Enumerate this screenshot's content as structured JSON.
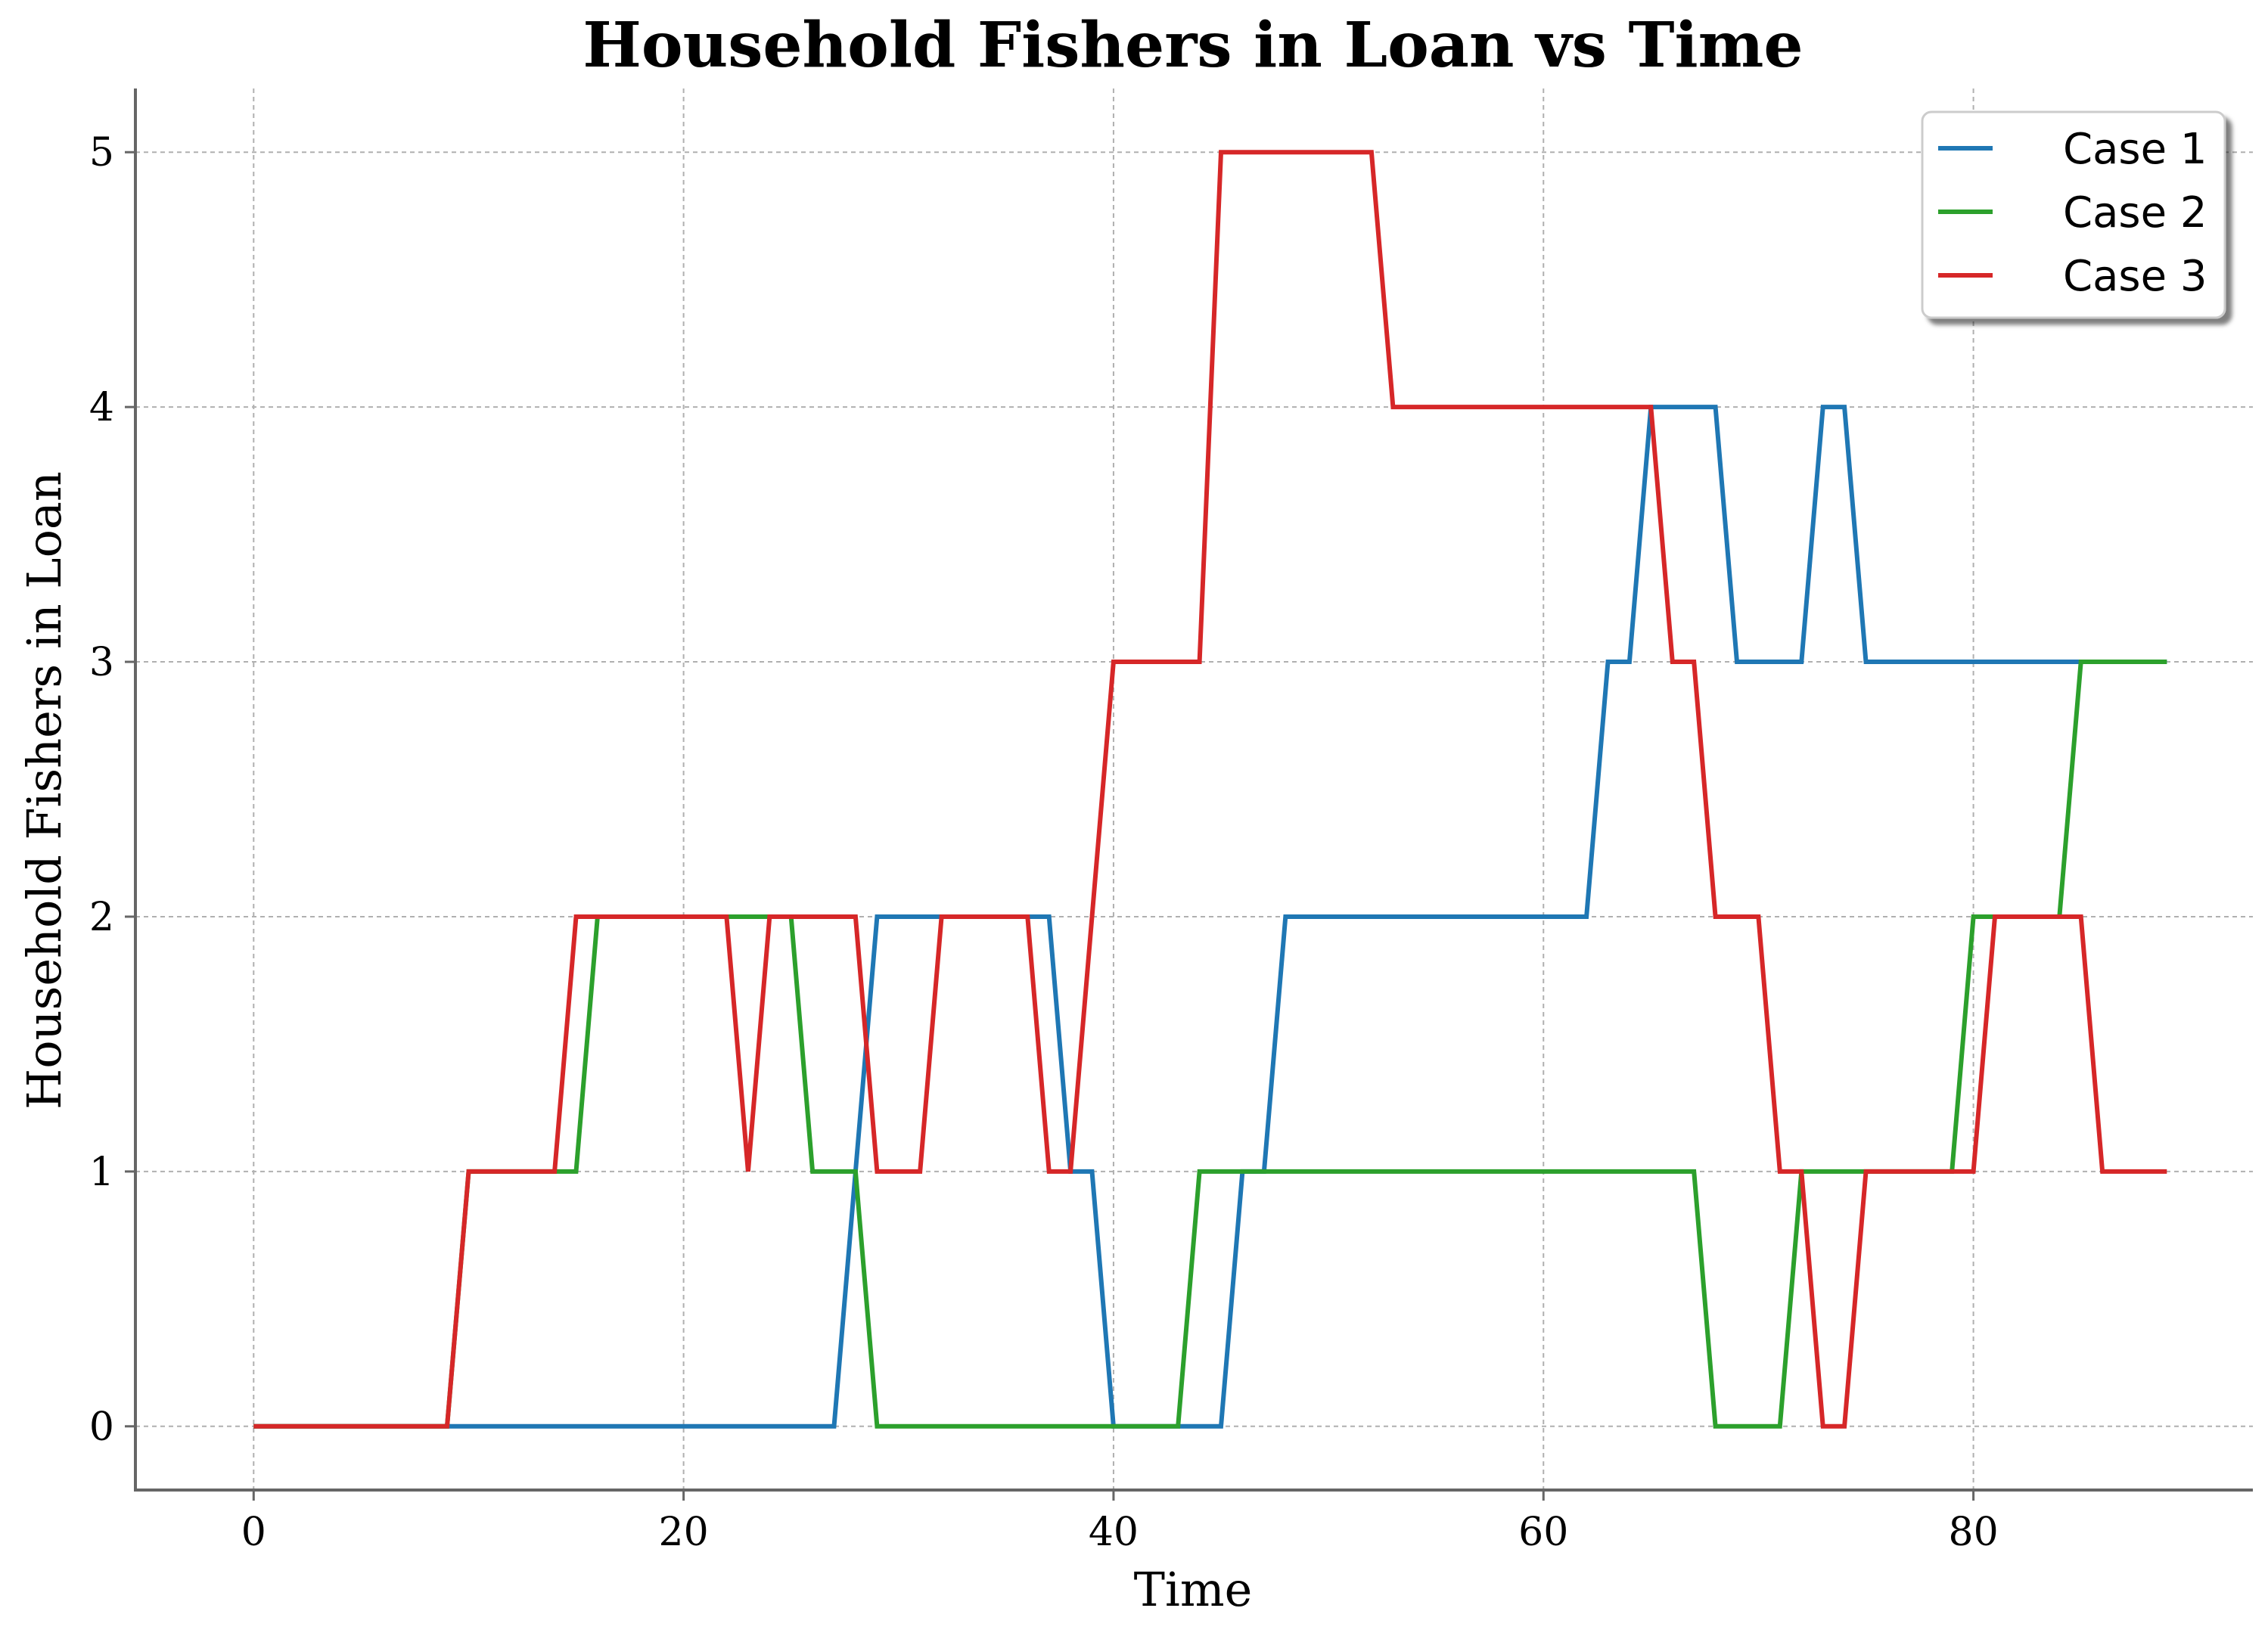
{
  "chart_data": {
    "type": "line",
    "title": "Household Fishers in Loan vs Time",
    "xlabel": "Time",
    "ylabel": "Household Fishers in Loan",
    "xlim": [
      -5.5,
      93
    ],
    "ylim": [
      -0.25,
      5.25
    ],
    "xticks": [
      0,
      20,
      40,
      60,
      80
    ],
    "yticks": [
      0,
      1,
      2,
      3,
      4,
      5
    ],
    "grid": true,
    "legend_position": "top-right",
    "series": [
      {
        "name": "Case 1",
        "color": "#1f77b4",
        "x": [
          0,
          1,
          2,
          3,
          4,
          5,
          6,
          7,
          8,
          9,
          10,
          11,
          12,
          13,
          14,
          15,
          16,
          17,
          18,
          19,
          20,
          21,
          22,
          23,
          24,
          25,
          26,
          27,
          28,
          29,
          30,
          31,
          32,
          33,
          34,
          35,
          36,
          37,
          38,
          39,
          40,
          41,
          42,
          43,
          44,
          45,
          46,
          47,
          48,
          49,
          50,
          51,
          52,
          53,
          54,
          55,
          56,
          57,
          58,
          59,
          60,
          61,
          62,
          63,
          64,
          65,
          66,
          67,
          68,
          69,
          70,
          71,
          72,
          73,
          74,
          75,
          76,
          77,
          78,
          79,
          80,
          81,
          82,
          83,
          84,
          85,
          86,
          87,
          88,
          89
        ],
        "y": [
          0,
          0,
          0,
          0,
          0,
          0,
          0,
          0,
          0,
          0,
          0,
          0,
          0,
          0,
          0,
          0,
          0,
          0,
          0,
          0,
          0,
          0,
          0,
          0,
          0,
          0,
          0,
          0,
          1,
          2,
          2,
          2,
          2,
          2,
          2,
          2,
          2,
          2,
          1,
          1,
          0,
          0,
          0,
          0,
          0,
          0,
          1,
          1,
          2,
          2,
          2,
          2,
          2,
          2,
          2,
          2,
          2,
          2,
          2,
          2,
          2,
          2,
          2,
          3,
          3,
          4,
          4,
          4,
          4,
          3,
          3,
          3,
          3,
          4,
          4,
          3,
          3,
          3,
          3,
          3,
          3,
          3,
          3,
          3,
          3,
          3,
          3,
          3,
          3,
          3
        ]
      },
      {
        "name": "Case 2",
        "color": "#2ca02c",
        "x": [
          0,
          1,
          2,
          3,
          4,
          5,
          6,
          7,
          8,
          9,
          10,
          11,
          12,
          13,
          14,
          15,
          16,
          17,
          18,
          19,
          20,
          21,
          22,
          23,
          24,
          25,
          26,
          27,
          28,
          29,
          30,
          31,
          32,
          33,
          34,
          35,
          36,
          37,
          38,
          39,
          40,
          41,
          42,
          43,
          44,
          45,
          46,
          47,
          48,
          49,
          50,
          51,
          52,
          53,
          54,
          55,
          56,
          57,
          58,
          59,
          60,
          61,
          62,
          63,
          64,
          65,
          66,
          67,
          68,
          69,
          70,
          71,
          72,
          73,
          74,
          75,
          76,
          77,
          78,
          79,
          80,
          81,
          82,
          83,
          84,
          85,
          86,
          87,
          88,
          89
        ],
        "y": [
          0,
          0,
          0,
          0,
          0,
          0,
          0,
          0,
          0,
          0,
          1,
          1,
          1,
          1,
          1,
          1,
          2,
          2,
          2,
          2,
          2,
          2,
          2,
          2,
          2,
          2,
          1,
          1,
          1,
          0,
          0,
          0,
          0,
          0,
          0,
          0,
          0,
          0,
          0,
          0,
          0,
          0,
          0,
          0,
          1,
          1,
          1,
          1,
          1,
          1,
          1,
          1,
          1,
          1,
          1,
          1,
          1,
          1,
          1,
          1,
          1,
          1,
          1,
          1,
          1,
          1,
          1,
          1,
          0,
          0,
          0,
          0,
          1,
          1,
          1,
          1,
          1,
          1,
          1,
          1,
          2,
          2,
          2,
          2,
          2,
          3,
          3,
          3,
          3,
          3
        ]
      },
      {
        "name": "Case 3",
        "color": "#d62728",
        "x": [
          0,
          1,
          2,
          3,
          4,
          5,
          6,
          7,
          8,
          9,
          10,
          11,
          12,
          13,
          14,
          15,
          16,
          17,
          18,
          19,
          20,
          21,
          22,
          23,
          24,
          25,
          26,
          27,
          28,
          29,
          30,
          31,
          32,
          33,
          34,
          35,
          36,
          37,
          38,
          39,
          40,
          41,
          42,
          43,
          44,
          45,
          46,
          47,
          48,
          49,
          50,
          51,
          52,
          53,
          54,
          55,
          56,
          57,
          58,
          59,
          60,
          61,
          62,
          63,
          64,
          65,
          66,
          67,
          68,
          69,
          70,
          71,
          72,
          73,
          74,
          75,
          76,
          77,
          78,
          79,
          80,
          81,
          82,
          83,
          84,
          85,
          86,
          87,
          88,
          89
        ],
        "y": [
          0,
          0,
          0,
          0,
          0,
          0,
          0,
          0,
          0,
          0,
          1,
          1,
          1,
          1,
          1,
          2,
          2,
          2,
          2,
          2,
          2,
          2,
          2,
          1,
          2,
          2,
          2,
          2,
          2,
          1,
          1,
          1,
          2,
          2,
          2,
          2,
          2,
          1,
          1,
          2,
          3,
          3,
          3,
          3,
          3,
          5,
          5,
          5,
          5,
          5,
          5,
          5,
          5,
          4,
          4,
          4,
          4,
          4,
          4,
          4,
          4,
          4,
          4,
          4,
          4,
          4,
          3,
          3,
          2,
          2,
          2,
          1,
          1,
          0,
          0,
          1,
          1,
          1,
          1,
          1,
          1,
          2,
          2,
          2,
          2,
          2,
          1,
          1,
          1,
          1
        ]
      }
    ]
  }
}
